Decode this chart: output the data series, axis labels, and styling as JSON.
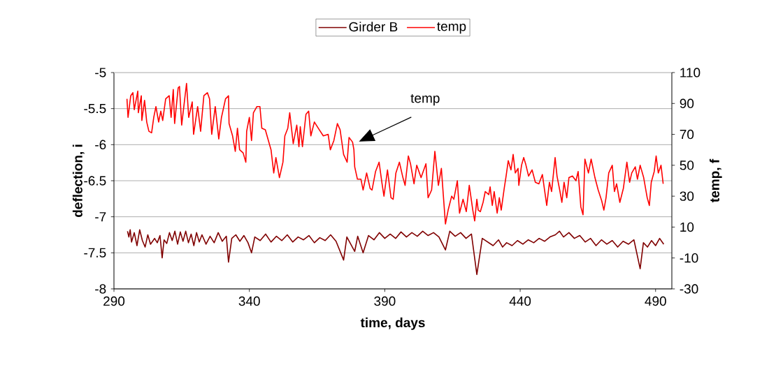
{
  "chart_data": {
    "type": "line",
    "xlabel": "time, days",
    "ylabel": "deflection, i",
    "y2label": "temp, f",
    "xlim": [
      290,
      496
    ],
    "xticks": [
      290,
      340,
      390,
      440,
      490
    ],
    "ylim": [
      -8,
      -5
    ],
    "yticks": [
      -8,
      -7.5,
      -7,
      -6.5,
      -6,
      -5.5,
      -5
    ],
    "y2lim": [
      -30,
      110
    ],
    "y2ticks": [
      -30,
      -10,
      10,
      30,
      50,
      70,
      90,
      110
    ],
    "grid": "y",
    "legend": "top",
    "annotations": [
      "temp"
    ],
    "series": [
      {
        "name": "Girder B",
        "color": "#800000",
        "x": [
          295,
          295.5,
          296,
          296.5,
          297.5,
          298.5,
          299.5,
          300.5,
          301.5,
          302.5,
          303.5,
          305,
          306,
          307,
          307.8,
          308.5,
          309.5,
          310.5,
          311.5,
          312.5,
          313.5,
          314.5,
          315.5,
          316.5,
          317.5,
          318.5,
          319.5,
          320.5,
          321.5,
          322.5,
          324,
          325.5,
          327,
          328.5,
          330,
          331.5,
          332.3,
          333.5,
          335,
          336.5,
          338,
          339.5,
          340.8,
          342,
          344,
          346,
          348,
          350,
          352,
          354,
          356,
          358,
          360,
          362,
          364,
          366,
          368,
          370,
          372,
          374.8,
          376,
          378.9,
          380,
          382,
          384,
          386,
          388,
          390,
          392,
          394,
          396,
          398,
          400,
          402,
          404,
          406,
          408,
          410,
          412.4,
          414,
          416,
          418,
          420,
          422,
          424,
          426,
          428,
          430,
          432,
          433.5,
          435,
          437,
          439,
          441,
          443,
          445,
          447,
          449,
          451,
          453,
          454.5,
          456,
          458,
          460,
          462,
          464,
          466,
          468,
          470,
          472,
          474,
          476,
          478,
          480,
          482,
          484.3,
          485.5,
          487,
          488.5,
          490,
          491.5,
          493
        ],
        "values": [
          -7.2,
          -7.28,
          -7.18,
          -7.35,
          -7.22,
          -7.4,
          -7.18,
          -7.33,
          -7.42,
          -7.25,
          -7.38,
          -7.3,
          -7.36,
          -7.26,
          -7.57,
          -7.32,
          -7.37,
          -7.22,
          -7.33,
          -7.2,
          -7.38,
          -7.21,
          -7.34,
          -7.2,
          -7.36,
          -7.24,
          -7.4,
          -7.22,
          -7.35,
          -7.25,
          -7.38,
          -7.27,
          -7.36,
          -7.22,
          -7.34,
          -7.27,
          -7.63,
          -7.3,
          -7.25,
          -7.34,
          -7.26,
          -7.36,
          -7.5,
          -7.28,
          -7.33,
          -7.24,
          -7.35,
          -7.27,
          -7.33,
          -7.25,
          -7.35,
          -7.28,
          -7.32,
          -7.26,
          -7.36,
          -7.29,
          -7.33,
          -7.25,
          -7.34,
          -7.6,
          -7.28,
          -7.48,
          -7.27,
          -7.5,
          -7.26,
          -7.32,
          -7.22,
          -7.3,
          -7.24,
          -7.3,
          -7.21,
          -7.28,
          -7.22,
          -7.27,
          -7.2,
          -7.26,
          -7.22,
          -7.28,
          -7.46,
          -7.2,
          -7.27,
          -7.22,
          -7.3,
          -7.24,
          -7.8,
          -7.3,
          -7.35,
          -7.4,
          -7.32,
          -7.42,
          -7.36,
          -7.4,
          -7.33,
          -7.38,
          -7.32,
          -7.36,
          -7.3,
          -7.34,
          -7.28,
          -7.25,
          -7.2,
          -7.28,
          -7.22,
          -7.3,
          -7.26,
          -7.35,
          -7.3,
          -7.4,
          -7.32,
          -7.38,
          -7.33,
          -7.42,
          -7.34,
          -7.38,
          -7.32,
          -7.72,
          -7.36,
          -7.42,
          -7.33,
          -7.4,
          -7.3,
          -7.38
        ]
      },
      {
        "name": "temp",
        "color": "#ff0000",
        "axis": "y2",
        "x": [
          294.8,
          295.2,
          296.2,
          297,
          297.5,
          298.8,
          299,
          300.1,
          300.3,
          301.3,
          302.1,
          302.9,
          303.9,
          304.7,
          305.5,
          306.5,
          307.3,
          308,
          309.1,
          310.4,
          311.1,
          311.9,
          312.4,
          313.7,
          314.2,
          315,
          315.8,
          316.8,
          317.6,
          318.9,
          319.4,
          320.9,
          322,
          323.2,
          324.5,
          325.3,
          326.1,
          327.4,
          328.7,
          329.7,
          331.2,
          332.3,
          332.5,
          333.8,
          334.8,
          335.6,
          336.4,
          337.7,
          338.7,
          339,
          340,
          340.8,
          341.5,
          342.8,
          343.9,
          344.6,
          345.9,
          346.7,
          348,
          349,
          349.8,
          351.1,
          352.4,
          353.1,
          354.2,
          354.9,
          356.2,
          357.5,
          358.3,
          358.8,
          359.6,
          360.9,
          361.9,
          362.7,
          364,
          365.8,
          367.3,
          369.1,
          369.9,
          371.2,
          372.5,
          373.5,
          374.8,
          376.1,
          376.8,
          378.1,
          378.6,
          378.9,
          379.9,
          381.2,
          382,
          383.3,
          384.6,
          385.3,
          386.6,
          387.9,
          389,
          389.7,
          391,
          392.3,
          393.1,
          394.1,
          395.4,
          396.7,
          397.5,
          398.7,
          399.5,
          400.8,
          401.8,
          403.4,
          405.2,
          406,
          407.3,
          408.5,
          409.8,
          410.9,
          411.6,
          412.4,
          413.4,
          414.7,
          415.5,
          416.8,
          417.6,
          418.9,
          420.1,
          421.2,
          422.5,
          423.2,
          424,
          424.5,
          425.3,
          426.3,
          427.1,
          428.4,
          428.9,
          429.7,
          430.4,
          431.5,
          432.3,
          433,
          434.1,
          434.8,
          435.6,
          436.6,
          437.4,
          438.2,
          439.2,
          439.5,
          440.5,
          441.3,
          442,
          443.1,
          444.4,
          445.6,
          446.9,
          448.2,
          449,
          449.8,
          450.8,
          451.6,
          452.9,
          453.6,
          454.7,
          455.4,
          456.2,
          457.2,
          458,
          459.3,
          460.6,
          461.4,
          462.4,
          463.2,
          463.9,
          465.2,
          466.2,
          467.6,
          468.8,
          470.1,
          470.9,
          471.7,
          472.7,
          474,
          474.8,
          475.6,
          476.8,
          478.1,
          479.4,
          480.4,
          481.2,
          482.5,
          483.3,
          484.3,
          485.6,
          486.9,
          487.7,
          488.4,
          489.5,
          490.2,
          491,
          492,
          492.8
        ],
        "values": [
          93,
          81,
          95,
          97,
          86,
          98,
          84,
          95,
          79,
          92,
          78,
          72,
          71,
          81,
          88,
          78,
          85,
          79,
          93,
          95,
          81,
          99,
          77,
          100,
          101,
          76,
          88,
          103,
          81,
          91,
          70,
          88,
          72,
          95,
          97,
          93,
          70,
          88,
          67,
          81,
          93,
          95,
          77,
          69,
          59,
          74,
          60,
          58,
          52,
          72,
          81,
          66,
          84,
          88,
          88,
          74,
          73,
          68,
          60,
          45,
          55,
          42,
          52,
          69,
          74,
          84,
          64,
          76,
          62,
          75,
          62,
          83,
          85,
          69,
          78,
          73,
          69,
          70,
          60,
          66,
          77,
          73,
          57,
          52,
          68,
          65,
          60,
          49,
          41,
          41,
          34,
          45,
          35,
          34,
          46,
          52,
          38,
          30,
          47,
          29,
          28,
          45,
          52,
          42,
          37,
          56,
          51,
          38,
          50,
          42,
          51,
          29,
          34,
          59,
          37,
          48,
          31,
          12,
          21,
          30,
          28,
          40,
          19,
          28,
          20,
          37,
          21,
          14,
          28,
          21,
          20,
          26,
          33,
          31,
          36,
          24,
          33,
          19,
          29,
          21,
          35,
          43,
          53,
          47,
          57,
          45,
          48,
          37,
          50,
          55,
          51,
          43,
          47,
          39,
          38,
          44,
          34,
          24,
          39,
          33,
          55,
          43,
          33,
          26,
          39,
          29,
          42,
          43,
          40,
          46,
          23,
          18,
          54,
          45,
          54,
          42,
          34,
          27,
          21,
          29,
          45,
          50,
          33,
          38,
          26,
          35,
          52,
          39,
          45,
          49,
          41,
          50,
          42,
          29,
          24,
          39,
          46,
          56,
          45,
          50,
          38
        ]
      }
    ]
  }
}
